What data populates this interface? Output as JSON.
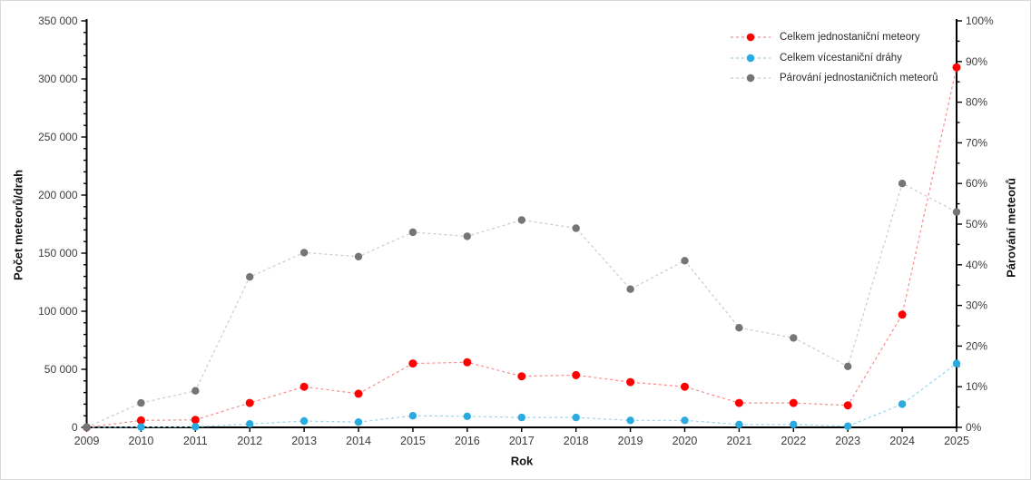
{
  "chart_data": {
    "type": "line",
    "title": "",
    "x_label": "Rok",
    "y_left_label": "Počet meteorů/drah",
    "y_right_label": "Párování meteorů",
    "grid": "off",
    "legend_position": "top-right",
    "x": [
      "2009",
      "2010",
      "2011",
      "2012",
      "2013",
      "2014",
      "2015",
      "2016",
      "2017",
      "2018",
      "2019",
      "2020",
      "2021",
      "2022",
      "2023",
      "2024",
      "2025"
    ],
    "left_axis": {
      "min": 0,
      "max": 350000,
      "major_step": 50000,
      "minor_step": 10000,
      "tick_labels": [
        "0",
        "50 000",
        "100 000",
        "150 000",
        "200 000",
        "250 000",
        "300 000",
        "350 000"
      ]
    },
    "right_axis": {
      "min": 0,
      "max": 100,
      "major_step": 10,
      "minor_step": 5,
      "tick_labels": [
        "0%",
        "10%",
        "20%",
        "30%",
        "40%",
        "50%",
        "60%",
        "70%",
        "80%",
        "90%",
        "100%"
      ]
    },
    "series": [
      {
        "name": "Celkem jednostaniční meteory",
        "axis": "left",
        "marker_color": "#ff0000",
        "line_color": "#ff8a8a",
        "marker_radius": 4.5,
        "values": [
          0,
          6000,
          6500,
          21000,
          35000,
          29000,
          55000,
          56000,
          44000,
          45000,
          39000,
          35000,
          21000,
          21000,
          19000,
          97000,
          310000
        ]
      },
      {
        "name": "Celkem vícestaniční dráhy",
        "axis": "left",
        "marker_color": "#29abe2",
        "line_color": "#93d7f3",
        "marker_radius": 4.2,
        "values": [
          0,
          300,
          500,
          3000,
          5500,
          4500,
          10000,
          9500,
          8500,
          8500,
          6000,
          6000,
          2500,
          2500,
          1000,
          20000,
          55000
        ]
      },
      {
        "name": "Párování jednostaničních meteorů",
        "axis": "right",
        "marker_color": "#757575",
        "line_color": "#cbcbcb",
        "marker_radius": 4.2,
        "values": [
          0,
          6,
          9,
          37,
          43,
          42,
          48,
          47,
          51,
          49,
          34,
          41,
          24.5,
          22,
          15,
          60,
          53
        ]
      }
    ]
  }
}
